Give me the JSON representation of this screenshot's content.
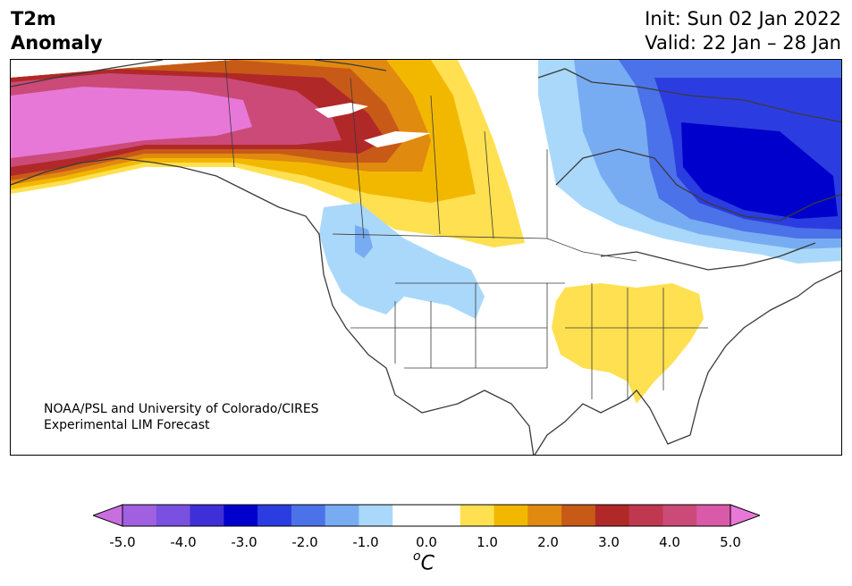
{
  "title": {
    "line1": "T2m",
    "line2": "Anomaly"
  },
  "info": {
    "init": "Init: Sun 02 Jan 2022",
    "valid": "Valid: 22 Jan – 28 Jan"
  },
  "credit": {
    "line1": "NOAA/PSL and University of Colorado/CIRES",
    "line2": "Experimental LIM Forecast"
  },
  "colorbar": {
    "colors": [
      "#c86fe0",
      "#a060e0",
      "#7a50e0",
      "#3f2fd8",
      "#0000cc",
      "#2b3de0",
      "#4b72e8",
      "#78acf2",
      "#aad8fa",
      "#ffffff",
      "#ffffff",
      "#ffe050",
      "#f2b800",
      "#e08a10",
      "#c85a18",
      "#b02828",
      "#c03850",
      "#cc4a78",
      "#d85aa8",
      "#e878d8"
    ],
    "ticks": [
      "-5.0",
      "-4.0",
      "-3.0",
      "-2.0",
      "-1.0",
      "0.0",
      "1.0",
      "2.0",
      "3.0",
      "4.0",
      "5.0"
    ],
    "unit_main": "C",
    "unit_sup": "o",
    "range": [
      -5.0,
      5.0
    ]
  },
  "legend_colors": {
    "strong_warm": "#e878d8",
    "warm": "#b02828",
    "mild_warm": "#ffe050",
    "mild_cold": "#aad8fa",
    "cold": "#78acf2",
    "strong_cold": "#0000cc"
  }
}
